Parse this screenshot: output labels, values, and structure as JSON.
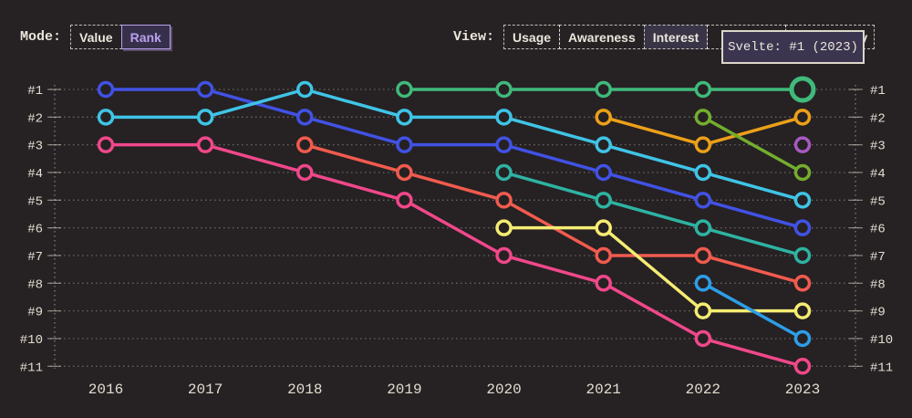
{
  "app": {
    "background": "#262123",
    "text_color": "#eae6db",
    "accent_purple": "#b9a0ee",
    "grid_color": "rgba(222,217,205,0.38)"
  },
  "mode_toggle": {
    "label": "Mode:",
    "options": [
      {
        "label": "Value",
        "selected": false
      },
      {
        "label": "Rank",
        "selected": true
      }
    ]
  },
  "view_toggle": {
    "label": "View:",
    "options": [
      {
        "label": "Usage",
        "selected": false
      },
      {
        "label": "Awareness",
        "selected": false
      },
      {
        "label": "Interest",
        "selected": true
      },
      {
        "label": "",
        "selected": false,
        "note": "fully covered by tooltip"
      },
      {
        "label": "ty",
        "selected": false,
        "note": "partially covered by tooltip"
      }
    ]
  },
  "tooltip": {
    "text": "Svelte: #1 (2023)"
  },
  "chart_data": {
    "type": "line",
    "subtype": "bump-rank-chart",
    "years": [
      2016,
      2017,
      2018,
      2019,
      2020,
      2021,
      2022,
      2023
    ],
    "rank_labels": [
      "#1",
      "#2",
      "#3",
      "#4",
      "#5",
      "#6",
      "#7",
      "#8",
      "#9",
      "#10",
      "#11"
    ],
    "ylim": [
      1,
      11
    ],
    "grid": "dotted horizontal lines, dotted vertical axis lines left and right",
    "legend": "none (series identified by color; only Svelte named via tooltip)",
    "highlight": {
      "series": "Svelte",
      "year": 2023,
      "rank": 1,
      "label": "Svelte: #1 (2023)"
    },
    "series": [
      {
        "name": "blue",
        "color": "#4152e4",
        "ranks": [
          1,
          1,
          2,
          3,
          3,
          4,
          5,
          6
        ]
      },
      {
        "name": "cyan",
        "color": "#3fc4e6",
        "ranks": [
          2,
          2,
          1,
          2,
          2,
          3,
          4,
          5
        ]
      },
      {
        "name": "magenta",
        "color": "#f0488a",
        "ranks": [
          3,
          3,
          4,
          5,
          7,
          8,
          10,
          11
        ]
      },
      {
        "name": "salmon",
        "color": "#f15b4e",
        "ranks": [
          null,
          null,
          3,
          4,
          5,
          7,
          7,
          8
        ]
      },
      {
        "name": "Svelte",
        "color": "#40ba7a",
        "ranks": [
          null,
          null,
          null,
          1,
          1,
          1,
          1,
          1
        ],
        "highlight_year": 2023
      },
      {
        "name": "teal",
        "color": "#2eb3a2",
        "ranks": [
          null,
          null,
          null,
          null,
          4,
          5,
          6,
          7
        ]
      },
      {
        "name": "yellow",
        "color": "#f5ec72",
        "ranks": [
          null,
          null,
          null,
          null,
          6,
          6,
          9,
          9
        ]
      },
      {
        "name": "orange",
        "color": "#eca019",
        "ranks": [
          null,
          null,
          null,
          null,
          null,
          2,
          3,
          2
        ]
      },
      {
        "name": "olive-green",
        "color": "#73ae2d",
        "ranks": [
          null,
          null,
          null,
          null,
          null,
          null,
          2,
          4
        ]
      },
      {
        "name": "sky-blue",
        "color": "#2d9ee8",
        "ranks": [
          null,
          null,
          null,
          null,
          null,
          null,
          8,
          10
        ]
      },
      {
        "name": "purple",
        "color": "#a659c2",
        "ranks": [
          null,
          null,
          null,
          null,
          null,
          null,
          null,
          3
        ]
      }
    ]
  }
}
